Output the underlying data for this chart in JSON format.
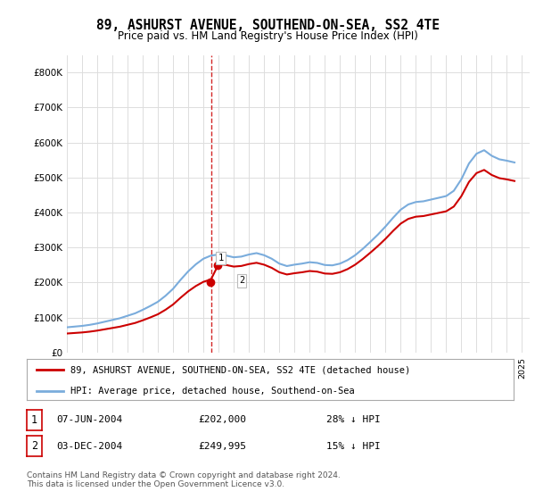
{
  "title": "89, ASHURST AVENUE, SOUTHEND-ON-SEA, SS2 4TE",
  "subtitle": "Price paid vs. HM Land Registry's House Price Index (HPI)",
  "legend_property": "89, ASHURST AVENUE, SOUTHEND-ON-SEA, SS2 4TE (detached house)",
  "legend_hpi": "HPI: Average price, detached house, Southend-on-Sea",
  "transaction1_date": "07-JUN-2004",
  "transaction1_price": "£202,000",
  "transaction1_hpi": "28% ↓ HPI",
  "transaction2_date": "03-DEC-2004",
  "transaction2_price": "£249,995",
  "transaction2_hpi": "15% ↓ HPI",
  "footer": "Contains HM Land Registry data © Crown copyright and database right 2024.\nThis data is licensed under the Open Government Licence v3.0.",
  "property_color": "#cc0000",
  "hpi_color": "#7aacdc",
  "dashed_line_color": "#cc0000",
  "background_color": "#ffffff",
  "grid_color": "#dddddd",
  "ylim": [
    0,
    850000
  ],
  "yticks": [
    0,
    100000,
    200000,
    300000,
    400000,
    500000,
    600000,
    700000,
    800000
  ],
  "transaction1_x": 2004.44,
  "transaction1_y": 202000,
  "transaction2_x": 2004.92,
  "transaction2_y": 249995,
  "vline_x": 2004.5,
  "xmin": 1995,
  "xmax": 2025.5
}
